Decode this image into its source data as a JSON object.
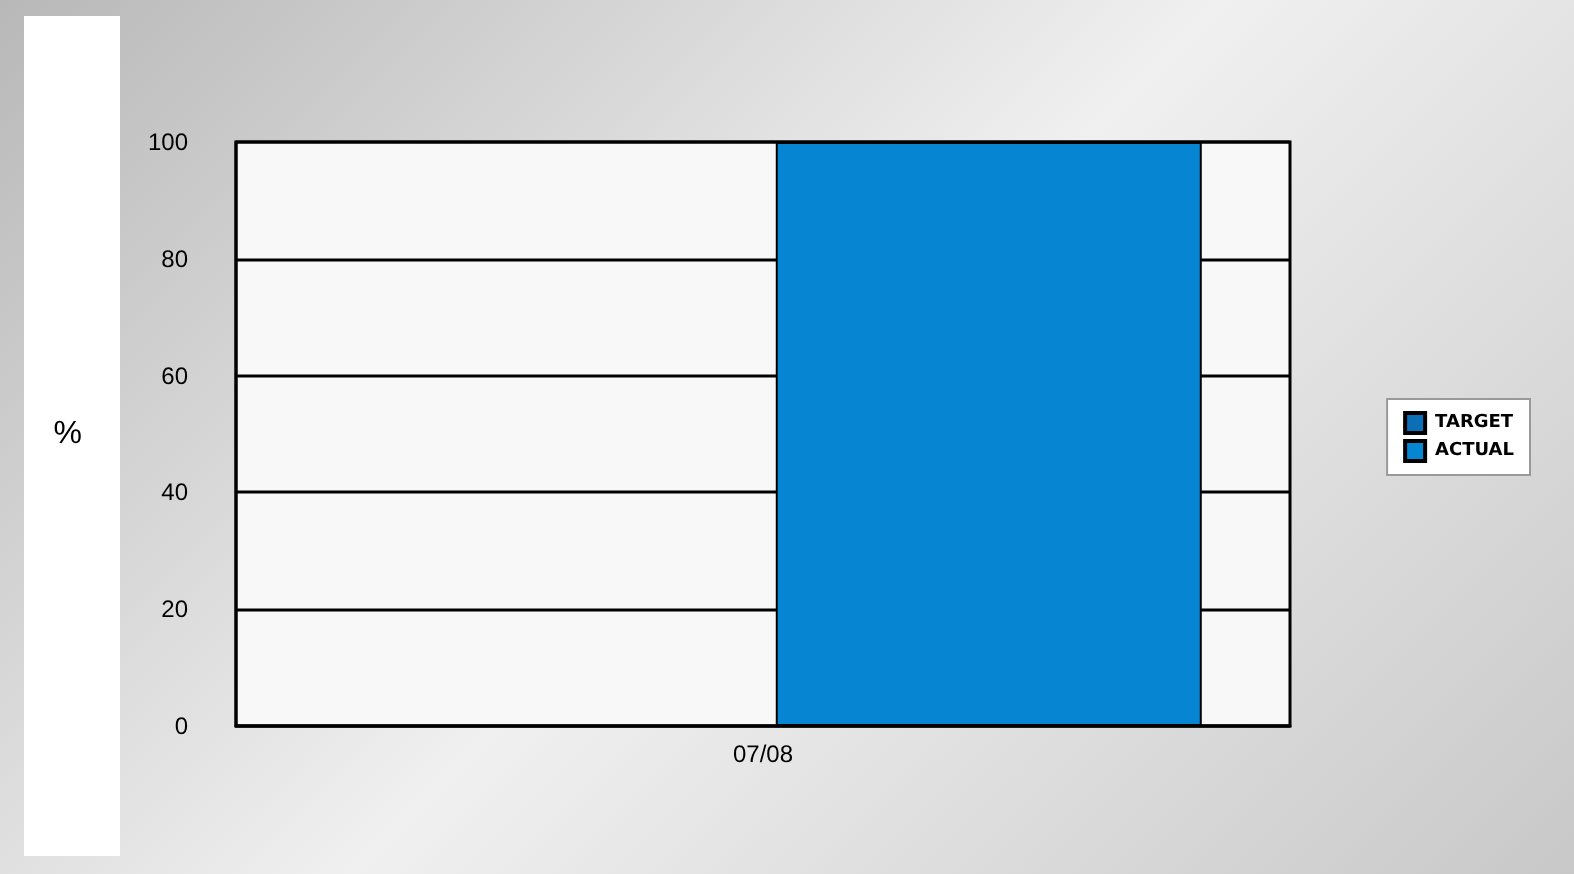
{
  "chart_data": {
    "type": "bar",
    "ylabel": "%",
    "categories": [
      "07/08"
    ],
    "series": [
      {
        "name": "TARGET",
        "color": "#0a6fb4",
        "values": [
          0
        ]
      },
      {
        "name": "ACTUAL",
        "color": "#0585d2",
        "values": [
          100
        ]
      }
    ],
    "ylim": [
      0,
      100
    ],
    "yticks": [
      0,
      20,
      40,
      60,
      80,
      100
    ],
    "grid": "y",
    "legend": "right"
  }
}
